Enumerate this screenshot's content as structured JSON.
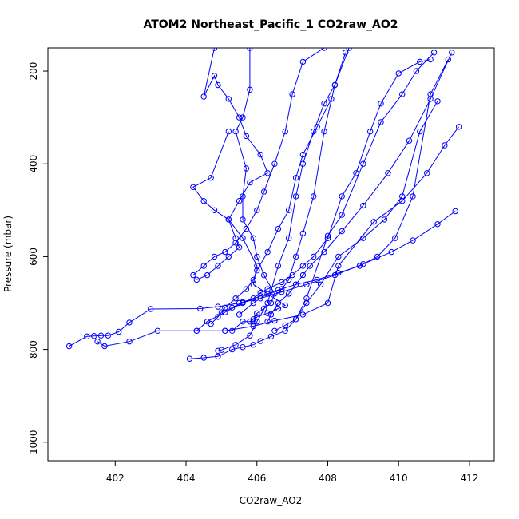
{
  "chart_data": {
    "type": "line",
    "title": "ATOM2 Northeast_Pacific_1 CO2raw_AO2",
    "xlabel": "CO2raw_AO2",
    "ylabel": "Pressure (mbar)",
    "xlim": [
      400.1,
      412.7
    ],
    "ylim": [
      1040,
      150
    ],
    "y_inverted": true,
    "xticks": [
      402,
      404,
      406,
      408,
      410,
      412
    ],
    "yticks": [
      200,
      400,
      600,
      800,
      1000
    ],
    "grid": false,
    "legend": "none",
    "line_color": "#0000ff",
    "marker": "open-circle",
    "series": [
      {
        "x": [
          400.7,
          401.2,
          401.4,
          401.6,
          401.8,
          402.1,
          402.4,
          403.0,
          404.4,
          404.9,
          405.5,
          406.1,
          406.7,
          407.4,
          408.2,
          409.0,
          409.8,
          410.4,
          411.1,
          411.6
        ],
        "y": [
          793,
          772,
          771,
          770,
          770,
          762,
          742,
          713,
          712,
          708,
          700,
          690,
          676,
          660,
          640,
          616,
          590,
          565,
          530,
          502
        ]
      },
      {
        "x": [
          401.5,
          401.7,
          402.4,
          403.2,
          404.3,
          405.1,
          405.9,
          406.5,
          407.3,
          408.0,
          408.3,
          409.3,
          410.1,
          410.8,
          411.3,
          411.7
        ],
        "y": [
          783,
          793,
          783,
          760,
          760,
          760,
          750,
          738,
          725,
          700,
          620,
          525,
          480,
          420,
          360,
          320
        ]
      },
      {
        "x": [
          404.1,
          404.5,
          404.9,
          405.3,
          405.6,
          405.9,
          406.1,
          406.4,
          406.8,
          407.1,
          407.4,
          408.0,
          408.4,
          409.0,
          409.5,
          410.1,
          410.5,
          411.0
        ],
        "y": [
          820,
          818,
          815,
          800,
          795,
          790,
          782,
          772,
          760,
          735,
          690,
          555,
          510,
          400,
          310,
          250,
          200,
          160
        ]
      },
      {
        "x": [
          404.9,
          405.0,
          405.4,
          405.8,
          406.0,
          406.3,
          406.6,
          406.9,
          407.1,
          407.3,
          407.6,
          407.9,
          408.2,
          408.6
        ],
        "y": [
          803,
          801,
          790,
          770,
          740,
          700,
          620,
          560,
          470,
          400,
          330,
          270,
          230,
          150
        ]
      },
      {
        "x": [
          405.1,
          405.3,
          405.6,
          405.9,
          406.0,
          406.3,
          406.6,
          406.8,
          406.3,
          405.9,
          406.0,
          405.6,
          405.2,
          404.8,
          404.5,
          404.2,
          404.7,
          405.2
        ],
        "y": [
          760,
          760,
          740,
          740,
          730,
          722,
          712,
          705,
          680,
          660,
          620,
          560,
          520,
          500,
          480,
          450,
          430,
          330
        ]
      },
      {
        "x": [
          404.3,
          404.6,
          404.9,
          405.2,
          405.5,
          405.4,
          405.2,
          405.5,
          405.8,
          406.3,
          406.1,
          405.7,
          405.5,
          405.2,
          404.9,
          404.8,
          404.5,
          404.8
        ],
        "y": [
          650,
          640,
          620,
          600,
          580,
          560,
          520,
          480,
          440,
          420,
          380,
          340,
          300,
          260,
          230,
          210,
          255,
          150
        ]
      },
      {
        "x": [
          405.0,
          405.3,
          405.6,
          405.9,
          406.1,
          406.3,
          406.7,
          407.0,
          407.3,
          407.6,
          408.0,
          408.4,
          408.8,
          409.2,
          409.5,
          410.0,
          410.6,
          410.9
        ],
        "y": [
          720,
          710,
          698,
          690,
          678,
          670,
          655,
          640,
          620,
          600,
          560,
          470,
          420,
          330,
          270,
          205,
          180,
          175
        ]
      },
      {
        "x": [
          405.8,
          405.9,
          406.0,
          406.2,
          406.4,
          406.5,
          406.2,
          406.0,
          405.9,
          405.6,
          405.6,
          405.7,
          405.4,
          405.6,
          405.8,
          405.8
        ],
        "y": [
          740,
          735,
          722,
          712,
          700,
          680,
          640,
          600,
          560,
          520,
          470,
          410,
          330,
          300,
          240,
          150
        ]
      },
      {
        "x": [
          406.3,
          406.4,
          406.6,
          406.9,
          407.1,
          407.3,
          407.5,
          407.9,
          408.4,
          409.0,
          409.7,
          410.3,
          410.9,
          411.5
        ],
        "y": [
          740,
          725,
          700,
          680,
          660,
          640,
          620,
          590,
          545,
          490,
          420,
          350,
          260,
          160
        ]
      },
      {
        "x": [
          406.5,
          406.8,
          407.1,
          407.4,
          407.8,
          408.3,
          409.0,
          409.6,
          410.1,
          410.6,
          411.1
        ],
        "y": [
          760,
          748,
          735,
          700,
          660,
          600,
          560,
          520,
          470,
          330,
          265
        ]
      },
      {
        "x": [
          405.5,
          405.9,
          406.3,
          406.7,
          406.9,
          407.1,
          407.3,
          407.6,
          407.9,
          408.2,
          408.5
        ],
        "y": [
          725,
          700,
          680,
          670,
          650,
          600,
          550,
          470,
          330,
          230,
          160
        ]
      },
      {
        "x": [
          404.3,
          404.6,
          405.1,
          405.6,
          406.1,
          406.6,
          407.1,
          407.7,
          408.3,
          408.9,
          409.4,
          409.9,
          410.4,
          410.9,
          411.4
        ],
        "y": [
          760,
          740,
          720,
          700,
          685,
          672,
          660,
          650,
          635,
          620,
          600,
          560,
          470,
          250,
          175
        ]
      },
      {
        "x": [
          404.7,
          404.9,
          405.1,
          405.4,
          405.7,
          405.9,
          406.0,
          406.3,
          406.6,
          406.9,
          407.1,
          407.3,
          407.7,
          408.1
        ],
        "y": [
          745,
          730,
          710,
          690,
          670,
          650,
          630,
          590,
          540,
          500,
          430,
          380,
          320,
          260
        ]
      },
      {
        "x": [
          404.2,
          404.5,
          404.8,
          405.1,
          405.4,
          405.7,
          406.0,
          406.2,
          406.5,
          406.8,
          407.0,
          407.3,
          407.9
        ],
        "y": [
          640,
          620,
          600,
          590,
          570,
          540,
          500,
          460,
          400,
          330,
          250,
          180,
          150
        ]
      }
    ]
  }
}
